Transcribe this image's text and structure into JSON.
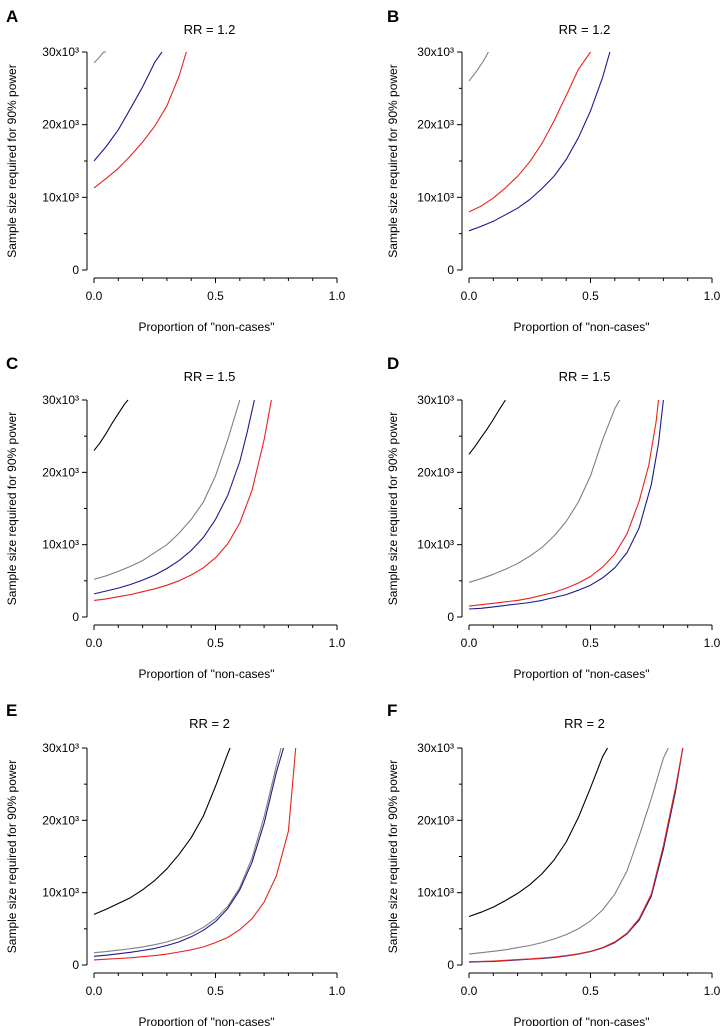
{
  "chart_data": [
    {
      "panel": "A",
      "type": "line",
      "title": "RR = 1.2",
      "xlabel": "Proportion of \"non-cases\"",
      "ylabel": "Sample size required for 90% power",
      "xlim": [
        0,
        1
      ],
      "ylim": [
        0,
        30000
      ],
      "xticks": [
        "0.0",
        "0.5",
        "1.0"
      ],
      "yticks": [
        "0",
        "10x10³",
        "20x10³",
        "30x10³"
      ],
      "series": [
        {
          "name": "black",
          "color": "#000000",
          "x": [],
          "y": []
        },
        {
          "name": "grey",
          "color": "#808080",
          "x": [
            0,
            0.02,
            0.04,
            0.05
          ],
          "y": [
            28500,
            29200,
            30000,
            30000
          ]
        },
        {
          "name": "blue",
          "color": "#1a1a8c",
          "x": [
            0,
            0.05,
            0.1,
            0.15,
            0.2,
            0.25,
            0.28
          ],
          "y": [
            15000,
            17000,
            19300,
            22200,
            25200,
            28600,
            30000
          ]
        },
        {
          "name": "red",
          "color": "#e8231c",
          "x": [
            0,
            0.05,
            0.1,
            0.15,
            0.2,
            0.25,
            0.3,
            0.35,
            0.38
          ],
          "y": [
            11300,
            12600,
            14000,
            15700,
            17600,
            19800,
            22600,
            26700,
            30000
          ]
        }
      ]
    },
    {
      "panel": "B",
      "type": "line",
      "title": "RR = 1.2",
      "xlabel": "Proportion of \"non-cases\"",
      "ylabel": "Sample size required for 90% power",
      "xlim": [
        0,
        1
      ],
      "ylim": [
        0,
        30000
      ],
      "xticks": [
        "0.0",
        "0.5",
        "1.0"
      ],
      "yticks": [
        "0",
        "10x10³",
        "20x10³",
        "30x10³"
      ],
      "series": [
        {
          "name": "black",
          "color": "#000000",
          "x": [],
          "y": []
        },
        {
          "name": "grey",
          "color": "#808080",
          "x": [
            0,
            0.03,
            0.06,
            0.08
          ],
          "y": [
            26000,
            27300,
            28800,
            30000
          ]
        },
        {
          "name": "blue",
          "color": "#1a1a8c",
          "x": [
            0,
            0.05,
            0.1,
            0.15,
            0.2,
            0.25,
            0.3,
            0.35,
            0.4,
            0.45,
            0.5,
            0.55,
            0.58
          ],
          "y": [
            5400,
            6000,
            6700,
            7600,
            8500,
            9700,
            11200,
            12900,
            15200,
            18200,
            21900,
            26500,
            30000
          ]
        },
        {
          "name": "red",
          "color": "#e8231c",
          "x": [
            0,
            0.05,
            0.1,
            0.15,
            0.2,
            0.25,
            0.3,
            0.35,
            0.4,
            0.45,
            0.5
          ],
          "y": [
            8000,
            8800,
            9900,
            11300,
            12900,
            14900,
            17400,
            20500,
            24000,
            27600,
            30000
          ]
        }
      ]
    },
    {
      "panel": "C",
      "type": "line",
      "title": "RR = 1.5",
      "xlabel": "Proportion of \"non-cases\"",
      "ylabel": "Sample size required for 90% power",
      "xlim": [
        0,
        1
      ],
      "ylim": [
        0,
        30000
      ],
      "xticks": [
        "0.0",
        "0.5",
        "1.0"
      ],
      "yticks": [
        "0",
        "10x10³",
        "20x10³",
        "30x10³"
      ],
      "series": [
        {
          "name": "black",
          "color": "#000000",
          "x": [
            0,
            0.025,
            0.05,
            0.075,
            0.1,
            0.125,
            0.14
          ],
          "y": [
            23000,
            24100,
            25400,
            26800,
            28100,
            29400,
            30000
          ]
        },
        {
          "name": "grey",
          "color": "#808080",
          "x": [
            0,
            0.05,
            0.1,
            0.15,
            0.2,
            0.25,
            0.3,
            0.35,
            0.4,
            0.45,
            0.5,
            0.55,
            0.6
          ],
          "y": [
            5200,
            5700,
            6300,
            7000,
            7800,
            8900,
            10000,
            11600,
            13500,
            15900,
            19500,
            24500,
            30000
          ]
        },
        {
          "name": "blue",
          "color": "#1a1a8c",
          "x": [
            0,
            0.05,
            0.1,
            0.15,
            0.2,
            0.25,
            0.3,
            0.35,
            0.4,
            0.45,
            0.5,
            0.55,
            0.6,
            0.63,
            0.66
          ],
          "y": [
            3200,
            3600,
            4000,
            4500,
            5100,
            5800,
            6700,
            7800,
            9200,
            11000,
            13500,
            16800,
            21500,
            25500,
            30000
          ]
        },
        {
          "name": "red",
          "color": "#e8231c",
          "x": [
            0,
            0.05,
            0.1,
            0.15,
            0.2,
            0.25,
            0.3,
            0.35,
            0.4,
            0.45,
            0.5,
            0.55,
            0.6,
            0.65,
            0.7,
            0.73
          ],
          "y": [
            2300,
            2500,
            2800,
            3100,
            3500,
            3900,
            4400,
            5000,
            5800,
            6800,
            8200,
            10100,
            13000,
            17500,
            24500,
            30000
          ]
        }
      ]
    },
    {
      "panel": "D",
      "type": "line",
      "title": "RR = 1.5",
      "xlabel": "Proportion of \"non-cases\"",
      "ylabel": "Sample size required for 90% power",
      "xlim": [
        0,
        1
      ],
      "ylim": [
        0,
        30000
      ],
      "xticks": [
        "0.0",
        "0.5",
        "1.0"
      ],
      "yticks": [
        "0",
        "10x10³",
        "20x10³",
        "30x10³"
      ],
      "series": [
        {
          "name": "black",
          "color": "#000000",
          "x": [
            0,
            0.025,
            0.05,
            0.075,
            0.1,
            0.125,
            0.15
          ],
          "y": [
            22500,
            23600,
            24800,
            26000,
            27300,
            28700,
            30000
          ]
        },
        {
          "name": "grey",
          "color": "#808080",
          "x": [
            0,
            0.05,
            0.1,
            0.15,
            0.2,
            0.25,
            0.3,
            0.35,
            0.4,
            0.45,
            0.5,
            0.55,
            0.6,
            0.62
          ],
          "y": [
            4800,
            5300,
            5900,
            6600,
            7400,
            8400,
            9600,
            11200,
            13200,
            15900,
            19500,
            24500,
            28800,
            30000
          ]
        },
        {
          "name": "blue",
          "color": "#1a1a8c",
          "x": [
            0,
            0.05,
            0.1,
            0.15,
            0.2,
            0.25,
            0.3,
            0.35,
            0.4,
            0.45,
            0.5,
            0.55,
            0.6,
            0.65,
            0.7,
            0.75,
            0.78,
            0.8
          ],
          "y": [
            1100,
            1200,
            1400,
            1600,
            1800,
            2000,
            2300,
            2700,
            3100,
            3700,
            4400,
            5400,
            6800,
            8900,
            12300,
            18300,
            24000,
            30000
          ]
        },
        {
          "name": "red",
          "color": "#e8231c",
          "x": [
            0,
            0.05,
            0.1,
            0.15,
            0.2,
            0.25,
            0.3,
            0.35,
            0.4,
            0.45,
            0.5,
            0.55,
            0.6,
            0.65,
            0.7,
            0.74,
            0.77,
            0.78
          ],
          "y": [
            1500,
            1700,
            1900,
            2100,
            2300,
            2600,
            3000,
            3400,
            4000,
            4700,
            5600,
            6900,
            8700,
            11500,
            16000,
            21000,
            27000,
            30000
          ]
        }
      ]
    },
    {
      "panel": "E",
      "type": "line",
      "title": "RR = 2",
      "xlabel": "Proportion of \"non-cases\"",
      "ylabel": "Sample size required for 90% power",
      "xlim": [
        0,
        1
      ],
      "ylim": [
        0,
        30000
      ],
      "xticks": [
        "0.0",
        "0.5",
        "1.0"
      ],
      "yticks": [
        "0",
        "10x10³",
        "20x10³",
        "30x10³"
      ],
      "series": [
        {
          "name": "black",
          "color": "#000000",
          "x": [
            0,
            0.05,
            0.1,
            0.15,
            0.2,
            0.25,
            0.3,
            0.35,
            0.4,
            0.45,
            0.5,
            0.55,
            0.56
          ],
          "y": [
            7000,
            7700,
            8500,
            9300,
            10400,
            11700,
            13300,
            15300,
            17600,
            20600,
            24700,
            29200,
            30000
          ]
        },
        {
          "name": "grey",
          "color": "#808080",
          "x": [
            0,
            0.05,
            0.1,
            0.15,
            0.2,
            0.25,
            0.3,
            0.35,
            0.4,
            0.45,
            0.5,
            0.55,
            0.6,
            0.65,
            0.7,
            0.75,
            0.77
          ],
          "y": [
            1700,
            1850,
            2050,
            2250,
            2500,
            2800,
            3200,
            3700,
            4300,
            5200,
            6400,
            8100,
            10700,
            14800,
            20500,
            27500,
            30000
          ]
        },
        {
          "name": "blue",
          "color": "#1a1a8c",
          "x": [
            0,
            0.05,
            0.1,
            0.15,
            0.2,
            0.25,
            0.3,
            0.35,
            0.4,
            0.45,
            0.5,
            0.55,
            0.6,
            0.65,
            0.7,
            0.75,
            0.78
          ],
          "y": [
            1200,
            1350,
            1550,
            1750,
            2000,
            2300,
            2700,
            3200,
            3900,
            4800,
            6000,
            7800,
            10400,
            14200,
            19600,
            26600,
            30000
          ]
        },
        {
          "name": "red",
          "color": "#e8231c",
          "x": [
            0,
            0.05,
            0.1,
            0.15,
            0.2,
            0.25,
            0.3,
            0.35,
            0.4,
            0.45,
            0.5,
            0.55,
            0.6,
            0.65,
            0.7,
            0.75,
            0.8,
            0.83
          ],
          "y": [
            700,
            800,
            900,
            1000,
            1150,
            1300,
            1500,
            1800,
            2100,
            2500,
            3100,
            3800,
            4900,
            6400,
            8700,
            12300,
            18500,
            30000
          ]
        }
      ]
    },
    {
      "panel": "F",
      "type": "line",
      "title": "RR = 2",
      "xlabel": "Proportion of \"non-cases\"",
      "ylabel": "Sample size required for 90% power",
      "xlim": [
        0,
        1
      ],
      "ylim": [
        0,
        30000
      ],
      "xticks": [
        "0.0",
        "0.5",
        "1.0"
      ],
      "yticks": [
        "0",
        "10x10³",
        "20x10³",
        "30x10³"
      ],
      "series": [
        {
          "name": "black",
          "color": "#000000",
          "x": [
            0,
            0.05,
            0.1,
            0.15,
            0.2,
            0.25,
            0.3,
            0.35,
            0.4,
            0.45,
            0.5,
            0.55,
            0.57
          ],
          "y": [
            6700,
            7300,
            8000,
            8900,
            9900,
            11100,
            12600,
            14500,
            17000,
            20400,
            24500,
            28800,
            30000
          ]
        },
        {
          "name": "grey",
          "color": "#808080",
          "x": [
            0,
            0.05,
            0.1,
            0.15,
            0.2,
            0.25,
            0.3,
            0.35,
            0.4,
            0.45,
            0.5,
            0.55,
            0.6,
            0.65,
            0.7,
            0.75,
            0.8,
            0.82
          ],
          "y": [
            1500,
            1700,
            1900,
            2100,
            2400,
            2700,
            3100,
            3600,
            4200,
            5000,
            6100,
            7600,
            9800,
            13000,
            17800,
            23000,
            28600,
            30000
          ]
        },
        {
          "name": "blue",
          "color": "#1a1a8c",
          "x": [
            0,
            0.05,
            0.1,
            0.15,
            0.2,
            0.25,
            0.3,
            0.35,
            0.4,
            0.45,
            0.5,
            0.55,
            0.6,
            0.65,
            0.7,
            0.75,
            0.8,
            0.85,
            0.88
          ],
          "y": [
            400,
            450,
            500,
            600,
            700,
            800,
            900,
            1050,
            1250,
            1500,
            1850,
            2350,
            3100,
            4300,
            6200,
            9500,
            16000,
            24000,
            30000
          ]
        },
        {
          "name": "red",
          "color": "#e8231c",
          "x": [
            0,
            0.05,
            0.1,
            0.15,
            0.2,
            0.25,
            0.3,
            0.35,
            0.4,
            0.45,
            0.5,
            0.55,
            0.6,
            0.65,
            0.7,
            0.75,
            0.8,
            0.85,
            0.88
          ],
          "y": [
            450,
            500,
            550,
            650,
            750,
            850,
            950,
            1100,
            1300,
            1550,
            1900,
            2400,
            3200,
            4400,
            6400,
            9800,
            16500,
            24500,
            30000
          ]
        }
      ]
    }
  ]
}
